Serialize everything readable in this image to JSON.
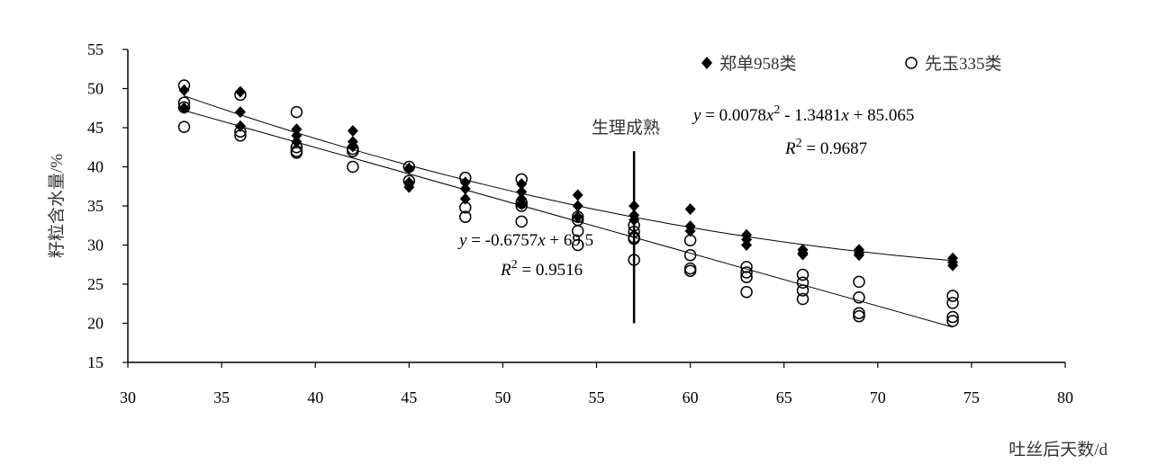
{
  "chart_data": {
    "type": "scatter",
    "title": "",
    "xlabel": "吐丝后天数/d",
    "ylabel": "籽粒含水量/%",
    "xlim": [
      30,
      80
    ],
    "ylim": [
      15,
      55
    ],
    "xticks": [
      30,
      35,
      40,
      45,
      50,
      55,
      60,
      65,
      70,
      75,
      80
    ],
    "yticks": [
      15,
      20,
      25,
      30,
      35,
      40,
      45,
      50,
      55
    ],
    "grid": false,
    "legend_position": "top-right",
    "series": [
      {
        "name": "郑单958类",
        "marker": "diamond-filled",
        "color": "#000000",
        "points": [
          [
            33,
            49.8
          ],
          [
            33,
            47.5
          ],
          [
            36,
            49.6
          ],
          [
            36,
            47.0
          ],
          [
            36,
            45.2
          ],
          [
            39,
            44.8
          ],
          [
            39,
            44.0
          ],
          [
            39,
            43.2
          ],
          [
            42,
            44.6
          ],
          [
            42,
            43.2
          ],
          [
            42,
            42.6
          ],
          [
            45,
            39.8
          ],
          [
            45,
            38.0
          ],
          [
            45,
            37.4
          ],
          [
            48,
            38.0
          ],
          [
            48,
            37.2
          ],
          [
            48,
            35.9
          ],
          [
            51,
            37.8
          ],
          [
            51,
            36.8
          ],
          [
            51,
            35.9
          ],
          [
            51,
            35.2
          ],
          [
            54,
            36.4
          ],
          [
            54,
            35.0
          ],
          [
            54,
            33.6
          ],
          [
            57,
            35.0
          ],
          [
            57,
            33.8
          ],
          [
            57,
            33.2
          ],
          [
            60,
            34.6
          ],
          [
            60,
            32.4
          ],
          [
            60,
            31.8
          ],
          [
            63,
            31.3
          ],
          [
            63,
            30.7
          ],
          [
            63,
            30.0
          ],
          [
            66,
            29.4
          ],
          [
            66,
            29.0
          ],
          [
            66,
            28.8
          ],
          [
            69,
            29.4
          ],
          [
            69,
            29.0
          ],
          [
            69,
            28.7
          ],
          [
            74,
            28.3
          ],
          [
            74,
            27.8
          ],
          [
            74,
            27.4
          ]
        ]
      },
      {
        "name": "先玉335类",
        "marker": "circle-open",
        "color": "#000000",
        "points": [
          [
            33,
            50.4
          ],
          [
            33,
            48.2
          ],
          [
            33,
            47.6
          ],
          [
            33,
            45.1
          ],
          [
            36,
            49.2
          ],
          [
            36,
            44.5
          ],
          [
            36,
            44.0
          ],
          [
            39,
            47.0
          ],
          [
            39,
            42.5
          ],
          [
            39,
            42.0
          ],
          [
            39,
            41.8
          ],
          [
            42,
            42.3
          ],
          [
            42,
            42.0
          ],
          [
            42,
            40.0
          ],
          [
            45,
            40.0
          ],
          [
            45,
            38.2
          ],
          [
            48,
            38.6
          ],
          [
            48,
            34.8
          ],
          [
            48,
            33.6
          ],
          [
            51,
            38.4
          ],
          [
            51,
            35.4
          ],
          [
            51,
            35.0
          ],
          [
            51,
            33.0
          ],
          [
            54,
            33.6
          ],
          [
            54,
            33.2
          ],
          [
            54,
            31.8
          ],
          [
            54,
            30.0
          ],
          [
            57,
            32.5
          ],
          [
            57,
            31.7
          ],
          [
            57,
            31.0
          ],
          [
            57,
            30.8
          ],
          [
            57,
            28.1
          ],
          [
            60,
            30.6
          ],
          [
            60,
            28.7
          ],
          [
            60,
            27.0
          ],
          [
            60,
            26.7
          ],
          [
            63,
            27.2
          ],
          [
            63,
            26.5
          ],
          [
            63,
            25.9
          ],
          [
            63,
            24.0
          ],
          [
            66,
            26.2
          ],
          [
            66,
            25.2
          ],
          [
            66,
            24.2
          ],
          [
            66,
            23.1
          ],
          [
            69,
            25.3
          ],
          [
            69,
            23.3
          ],
          [
            69,
            21.3
          ],
          [
            69,
            20.9
          ],
          [
            74,
            23.5
          ],
          [
            74,
            22.6
          ],
          [
            74,
            20.8
          ],
          [
            74,
            20.3
          ]
        ]
      }
    ],
    "fits": [
      {
        "kind": "quadratic",
        "series": "郑单958类",
        "coef": [
          0.0078,
          -1.3481,
          85.065
        ],
        "x_range": [
          33,
          74
        ]
      },
      {
        "kind": "linear",
        "series": "先玉335类",
        "coef": [
          -0.6757,
          69.5
        ],
        "x_range": [
          33,
          74
        ]
      }
    ],
    "vertical_marker": {
      "x": 57,
      "y_range": [
        20,
        42
      ],
      "label": "生理成熟"
    },
    "annotations": {
      "eq1_y": "y",
      "eq1_rest": " = 0.0078",
      "eq1_x1": "x",
      "eq1_exp": "2",
      "eq1_mid": " - 1.3481",
      "eq1_x2": "x",
      "eq1_end": " + 85.065",
      "r1_R": "R",
      "r1_exp": "2",
      "r1_val": " = 0.9687",
      "eq2_y": "y",
      "eq2_rest": " = -0.6757",
      "eq2_x": "x",
      "eq2_end": " + 69.5",
      "r2_R": "R",
      "r2_exp": "2",
      "r2_val": " = 0.9516"
    }
  }
}
